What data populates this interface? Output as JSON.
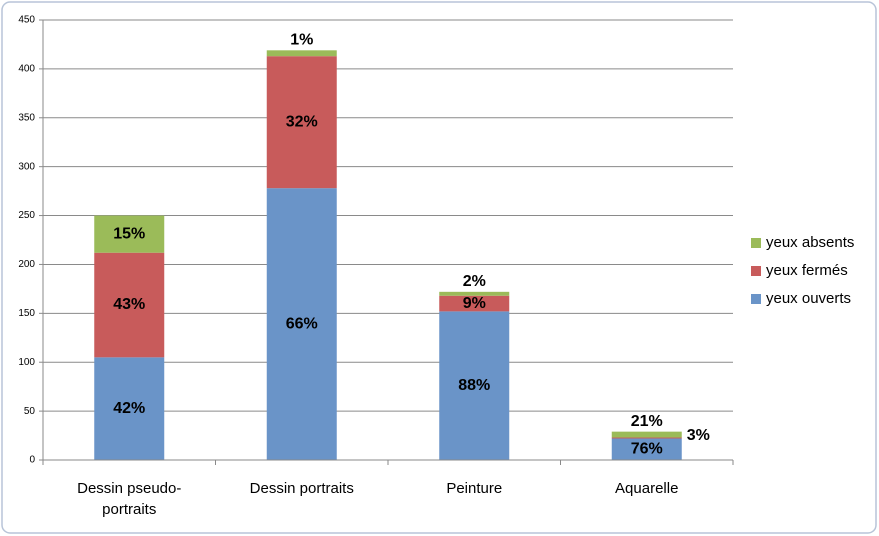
{
  "chart_data": {
    "type": "stacked-bar",
    "categories": [
      "Dessin pseudo-portraits",
      "Dessin portraits",
      "Peinture",
      "Aquarelle"
    ],
    "series": [
      {
        "name": "yeux ouverts",
        "color": "#6a94c8",
        "values": [
          105,
          278,
          152,
          22
        ],
        "percent_labels": [
          "42%",
          "66%",
          "88%",
          "76%"
        ]
      },
      {
        "name": "yeux fermés",
        "color": "#c85b5b",
        "values": [
          107,
          135,
          16,
          1
        ],
        "percent_labels": [
          "43%",
          "32%",
          "9%",
          "3%"
        ]
      },
      {
        "name": "yeux absents",
        "color": "#9bbb59",
        "values": [
          38,
          6,
          4,
          6
        ],
        "percent_labels": [
          "15%",
          "1%",
          "2%",
          "21%"
        ]
      }
    ],
    "ylim": [
      0,
      450
    ],
    "yticks": [
      0,
      50,
      100,
      150,
      200,
      250,
      300,
      350,
      400,
      450
    ],
    "grid": true,
    "legend": "right"
  }
}
